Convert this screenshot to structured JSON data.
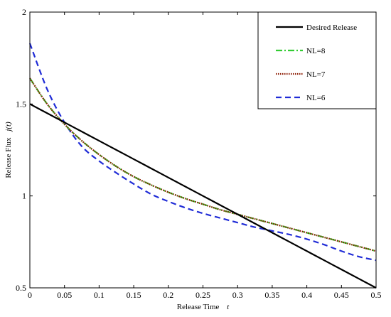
{
  "chart_data": {
    "type": "line",
    "xlabel": "Release Time",
    "xlabel_symbol": "t",
    "ylabel": "Release Flux",
    "ylabel_symbol": "j(t)",
    "xlim": [
      0,
      0.5
    ],
    "ylim": [
      0.5,
      2
    ],
    "x_ticks": [
      0,
      0.05,
      0.1,
      0.15,
      0.2,
      0.25,
      0.3,
      0.35,
      0.4,
      0.45,
      0.5
    ],
    "x_tick_labels": [
      "0",
      "0.05",
      "0.1",
      "0.15",
      "0.2",
      "0.25",
      "0.3",
      "0.35",
      "0.4",
      "0.45",
      "0.5"
    ],
    "y_ticks": [
      0.5,
      1,
      1.5,
      2
    ],
    "y_tick_labels": [
      "0.5",
      "1",
      "1.5",
      "2"
    ],
    "grid": false,
    "legend_position": "top-right",
    "x": [
      0,
      0.025,
      0.05,
      0.075,
      0.1,
      0.125,
      0.15,
      0.175,
      0.2,
      0.225,
      0.25,
      0.275,
      0.3,
      0.325,
      0.35,
      0.375,
      0.4,
      0.425,
      0.45,
      0.475,
      0.5
    ],
    "series": [
      {
        "name": "Desired Release",
        "color": "#000000",
        "style": "solid",
        "values": [
          1.5,
          1.45,
          1.4,
          1.35,
          1.3,
          1.25,
          1.2,
          1.15,
          1.1,
          1.05,
          1.0,
          0.95,
          0.9,
          0.85,
          0.8,
          0.75,
          0.7,
          0.65,
          0.6,
          0.55,
          0.5
        ]
      },
      {
        "name": "NL=8",
        "color": "#33cc33",
        "style": "dashdot",
        "values": [
          1.64,
          1.5,
          1.39,
          1.3,
          1.225,
          1.16,
          1.105,
          1.06,
          1.02,
          0.985,
          0.955,
          0.925,
          0.9,
          0.875,
          0.85,
          0.825,
          0.8,
          0.775,
          0.75,
          0.725,
          0.7
        ]
      },
      {
        "name": "NL=7",
        "color": "#8b1a00",
        "style": "dotted",
        "values": [
          1.64,
          1.5,
          1.39,
          1.3,
          1.225,
          1.16,
          1.105,
          1.06,
          1.02,
          0.985,
          0.955,
          0.925,
          0.9,
          0.875,
          0.85,
          0.825,
          0.8,
          0.775,
          0.75,
          0.725,
          0.7
        ]
      },
      {
        "name": "NL=6",
        "color": "#1f2bd6",
        "style": "dashed",
        "values": [
          1.83,
          1.58,
          1.4,
          1.27,
          1.19,
          1.125,
          1.065,
          1.01,
          0.97,
          0.935,
          0.905,
          0.88,
          0.855,
          0.83,
          0.81,
          0.79,
          0.765,
          0.735,
          0.7,
          0.67,
          0.65
        ]
      }
    ]
  }
}
